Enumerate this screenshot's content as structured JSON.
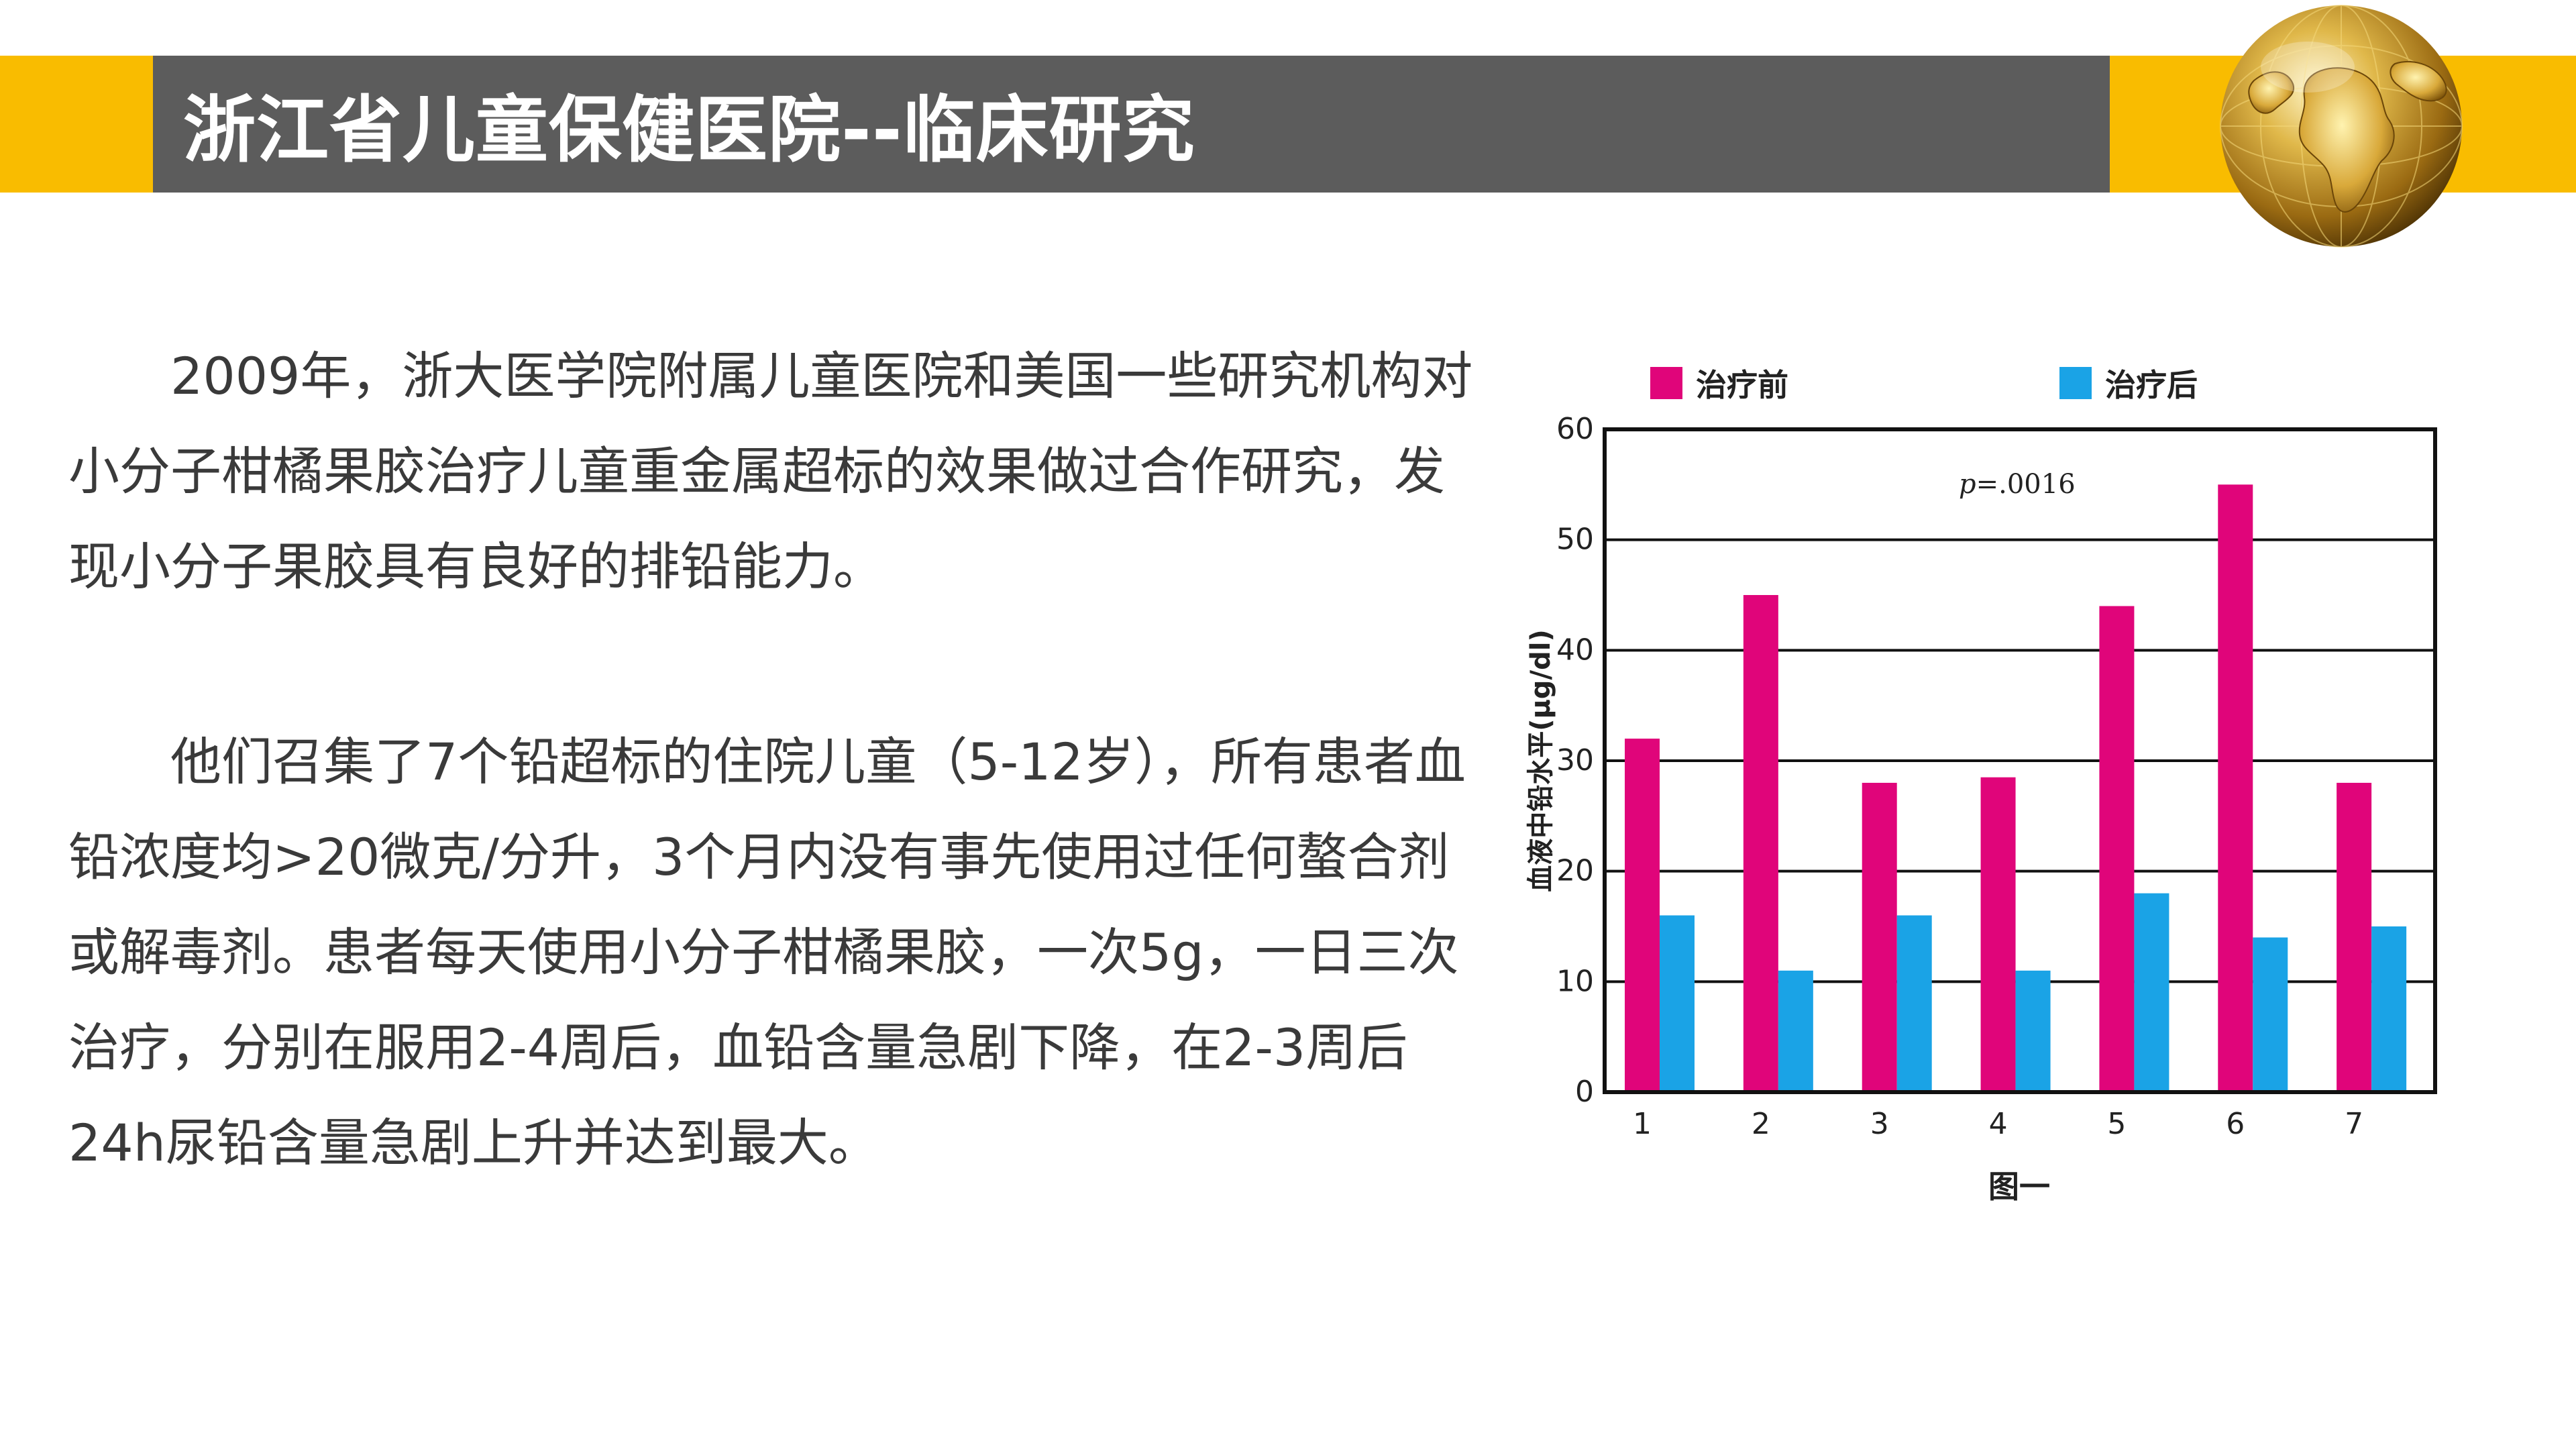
{
  "header": {
    "title": "浙江省儿童保健医院--临床研究"
  },
  "colors": {
    "accent_yellow": "#f9bc00",
    "title_band": "#5c5c5c",
    "before_series": "#e0057a",
    "after_series": "#1aa3e6"
  },
  "logo": {
    "icon": "gold-globe-icon"
  },
  "content": {
    "paragraph1": "　　2009年，浙大医学院附属儿童医院和美国一些研究机构对小分子柑橘果胶治疗儿童重金属超标的效果做过合作研究，发现小分子果胶具有良好的排铅能力。",
    "paragraph2": "　　他们召集了7个铅超标的住院儿童（5-12岁），所有患者血铅浓度均>20微克/分升，3个月内没有事先使用过任何螯合剂或解毒剂。患者每天使用小分子柑橘果胶，一次5g，一日三次治疗，分别在服用2-4周后，血铅含量急剧下降，在2-3周后24h尿铅含量急剧上升并达到最大。"
  },
  "chart_data": {
    "type": "bar",
    "categories": [
      "1",
      "2",
      "3",
      "4",
      "5",
      "6",
      "7"
    ],
    "series": [
      {
        "name": "治疗前",
        "values": [
          32,
          45,
          28,
          28.5,
          44,
          55,
          28
        ]
      },
      {
        "name": "治疗后",
        "values": [
          16,
          11,
          16,
          11,
          18,
          14,
          15
        ]
      }
    ],
    "ylabel": "血液中铅水平(μg/dl)",
    "xlabel": "",
    "caption": "图一",
    "annotation_p": "p",
    "annotation_value": "=.0016",
    "ylim": [
      0,
      60
    ],
    "yticks": [
      0,
      10,
      20,
      30,
      40,
      50,
      60
    ],
    "grid": true,
    "legend_position": "top"
  }
}
